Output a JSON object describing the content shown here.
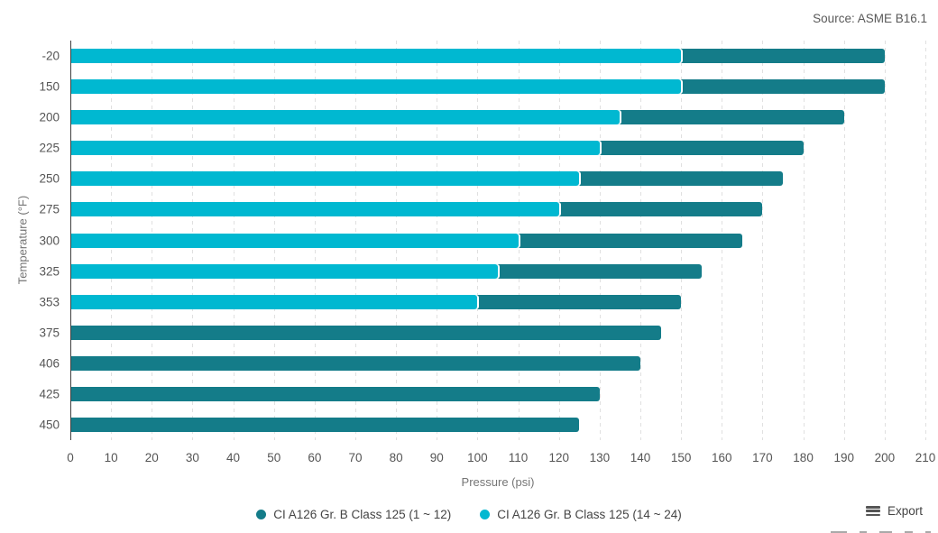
{
  "source_label": "Source: ASME B16.1",
  "chart_data": {
    "type": "bar",
    "orientation": "horizontal",
    "title": "",
    "xlabel": "Pressure (psi)",
    "ylabel": "Temperature (°F)",
    "xlim": [
      0,
      210
    ],
    "xtick_step": 10,
    "grid": "vertical-dashed",
    "legend_position": "bottom",
    "categories": [
      "-20",
      "150",
      "200",
      "225",
      "250",
      "275",
      "300",
      "325",
      "353",
      "375",
      "406",
      "425",
      "450"
    ],
    "series": [
      {
        "name": "CI A126 Gr. B Class 125 (1 ~ 12)",
        "color": "#147c89",
        "values": [
          200,
          200,
          190,
          180,
          175,
          170,
          165,
          155,
          150,
          145,
          140,
          130,
          125
        ]
      },
      {
        "name": "CI A126 Gr. B Class 125 (14 ~ 24)",
        "color": "#00b8d1",
        "values": [
          150,
          150,
          135,
          130,
          125,
          120,
          110,
          105,
          100,
          null,
          null,
          null,
          null
        ]
      }
    ],
    "colors": {
      "grid": "#e0e0e0",
      "axis": "#404040",
      "tick_text": "#555555"
    }
  },
  "footer": {
    "export_label": "Export"
  }
}
